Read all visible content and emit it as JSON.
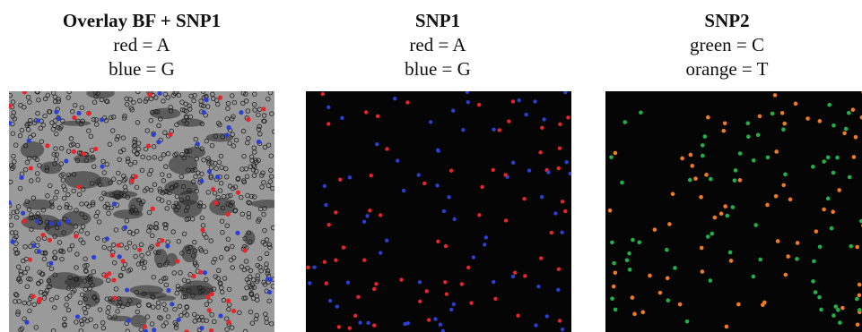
{
  "panels": [
    {
      "title": "Overlay BF + SNP1",
      "legend": [
        "red = A",
        "blue = G"
      ],
      "kind": "brightfield-overlay",
      "dot_colors": [
        "#e8252a",
        "#2b3fd0"
      ]
    },
    {
      "title": "SNP1",
      "legend": [
        "red = A",
        "blue = G"
      ],
      "kind": "fluorescence",
      "dot_colors": [
        "#e8252a",
        "#2b3fd0"
      ]
    },
    {
      "title": "SNP2",
      "legend": [
        "green = C",
        "orange = T"
      ],
      "kind": "fluorescence",
      "dot_colors": [
        "#22b04a",
        "#f07a26"
      ]
    }
  ],
  "colors": {
    "background_dark": "#050505",
    "brightfield_gray": "#9a9a9a",
    "bead_outline": "#1a1a1a"
  }
}
